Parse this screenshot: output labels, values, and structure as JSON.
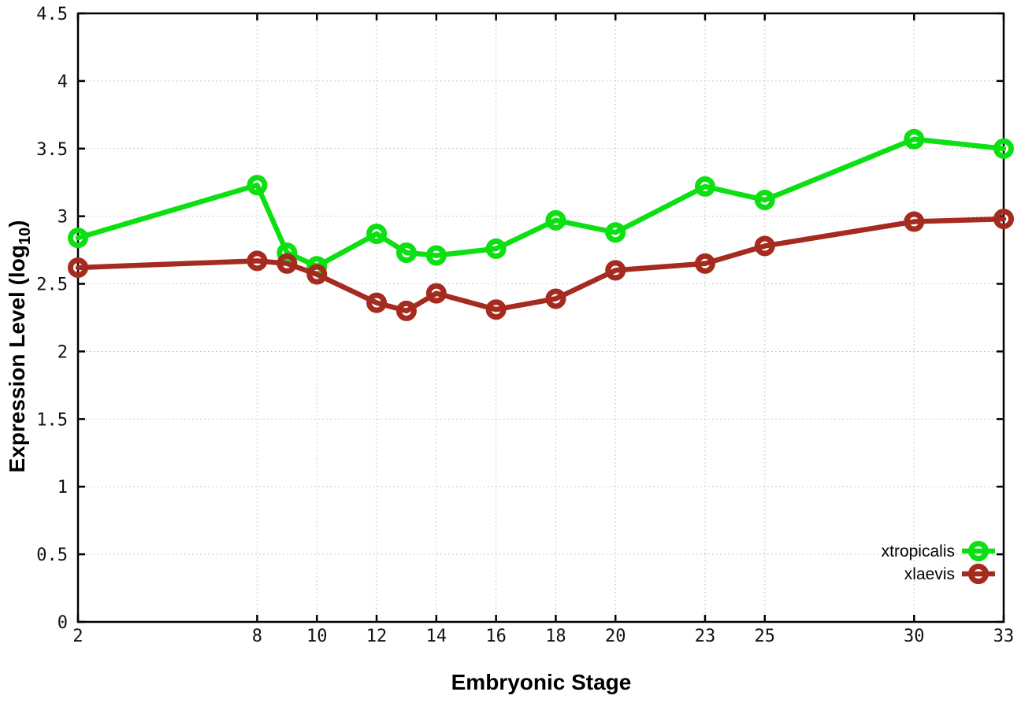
{
  "chart_data": {
    "type": "line",
    "x": [
      2,
      8,
      9,
      10,
      12,
      13,
      14,
      16,
      18,
      20,
      23,
      25,
      30,
      33
    ],
    "series": [
      {
        "name": "xtropicalis",
        "color": "#0cdf12",
        "values": [
          2.84,
          3.23,
          2.73,
          2.63,
          2.87,
          2.73,
          2.71,
          2.76,
          2.97,
          2.88,
          3.22,
          3.12,
          3.57,
          3.5
        ]
      },
      {
        "name": "xlaevis",
        "color": "#a52a1f",
        "values": [
          2.62,
          2.67,
          2.65,
          2.57,
          2.36,
          2.3,
          2.43,
          2.31,
          2.39,
          2.6,
          2.65,
          2.78,
          2.96,
          2.98
        ]
      }
    ],
    "xlabel": "Embryonic Stage",
    "ylabel_main": "Expression Level (log",
    "ylabel_sub": "10",
    "ylabel_end": ")",
    "xlim": [
      2,
      33
    ],
    "ylim": [
      0,
      4.5
    ],
    "x_ticks": [
      2,
      8,
      10,
      12,
      14,
      16,
      18,
      20,
      23,
      25,
      30,
      33
    ],
    "y_ticks": [
      0,
      0.5,
      1,
      1.5,
      2,
      2.5,
      3,
      3.5,
      4,
      4.5
    ],
    "grid": true,
    "marker": "open-circle",
    "legend_position": "bottom-right",
    "colors": {
      "grid": "#bcbcbc",
      "axis": "#000000",
      "background": "#ffffff",
      "tick_label": "#111111"
    }
  }
}
